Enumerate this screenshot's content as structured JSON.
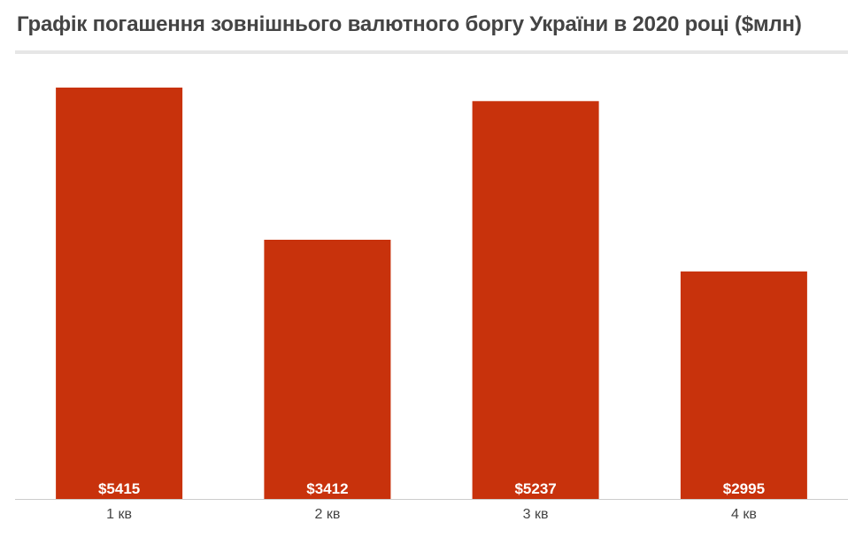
{
  "chart_data": {
    "type": "bar",
    "title": "Графік погашення зовнішнього валютного боргу України в 2020 році ($млн)",
    "categories": [
      "1 кв",
      "2 кв",
      "3 кв",
      "4 кв"
    ],
    "values": [
      5415,
      3412,
      5237,
      2995
    ],
    "value_labels": [
      "$5415",
      "$3412",
      "$5237",
      "$2995"
    ],
    "ylim": [
      0,
      5415
    ],
    "grid": false,
    "legend": "none",
    "colors": {
      "bar": "#c8320c",
      "value_label": "#ffffff",
      "axis_line": "#cccccc",
      "tick_label": "#444444",
      "title": "#444444"
    }
  }
}
